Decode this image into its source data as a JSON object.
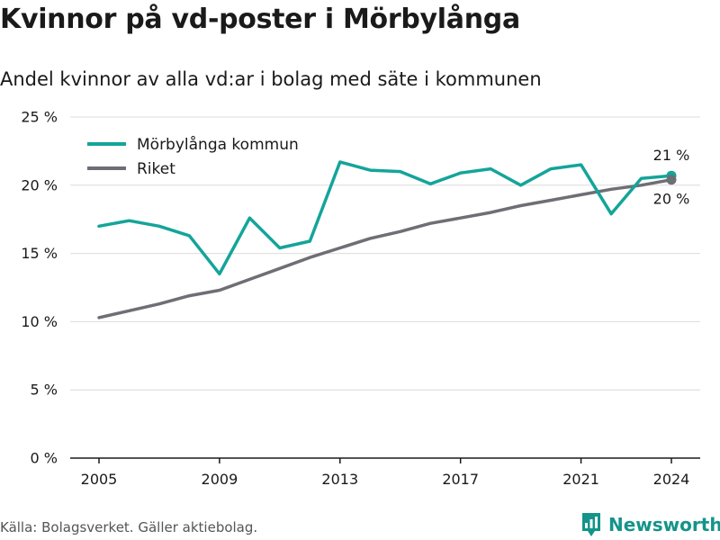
{
  "title": "Kvinnor på vd-poster i Mörbylånga",
  "subtitle": "Andel kvinnor av alla vd:ar i bolag med säte i kommunen",
  "source": "Källa: Bolagsverket. Gäller aktiebolag.",
  "brand": "Newsworthy",
  "colors": {
    "local": "#14a49a",
    "national": "#6e6e75",
    "grid": "#dcdcdc",
    "axis": "#1a1a1a"
  },
  "chart_data": {
    "type": "line",
    "x": [
      2005,
      2006,
      2007,
      2008,
      2009,
      2010,
      2011,
      2012,
      2013,
      2014,
      2015,
      2016,
      2017,
      2018,
      2019,
      2020,
      2021,
      2022,
      2023,
      2024
    ],
    "xticks": [
      2005,
      2009,
      2013,
      2017,
      2021,
      2024
    ],
    "xtick_labels": [
      "2005",
      "2009",
      "2013",
      "2017",
      "2021",
      "2024"
    ],
    "yticks": [
      0,
      5,
      10,
      15,
      20,
      25
    ],
    "ytick_labels": [
      "0 %",
      "5 %",
      "10 %",
      "15 %",
      "20 %",
      "25 %"
    ],
    "ylim": [
      0,
      25
    ],
    "grid": true,
    "legend_position": "top-left",
    "series": [
      {
        "name": "Mörbylånga kommun",
        "color": "#14a49a",
        "values": [
          17.0,
          17.4,
          17.0,
          16.3,
          13.5,
          17.6,
          15.4,
          15.9,
          21.7,
          21.1,
          21.0,
          20.1,
          20.9,
          21.2,
          20.0,
          21.2,
          21.5,
          17.9,
          20.5,
          20.7
        ],
        "end_label": "21 %"
      },
      {
        "name": "Riket",
        "color": "#6e6e75",
        "values": [
          10.3,
          10.8,
          11.3,
          11.9,
          12.3,
          13.1,
          13.9,
          14.7,
          15.4,
          16.1,
          16.6,
          17.2,
          17.6,
          18.0,
          18.5,
          18.9,
          19.3,
          19.7,
          20.0,
          20.4
        ],
        "end_label": "20 %"
      }
    ]
  }
}
